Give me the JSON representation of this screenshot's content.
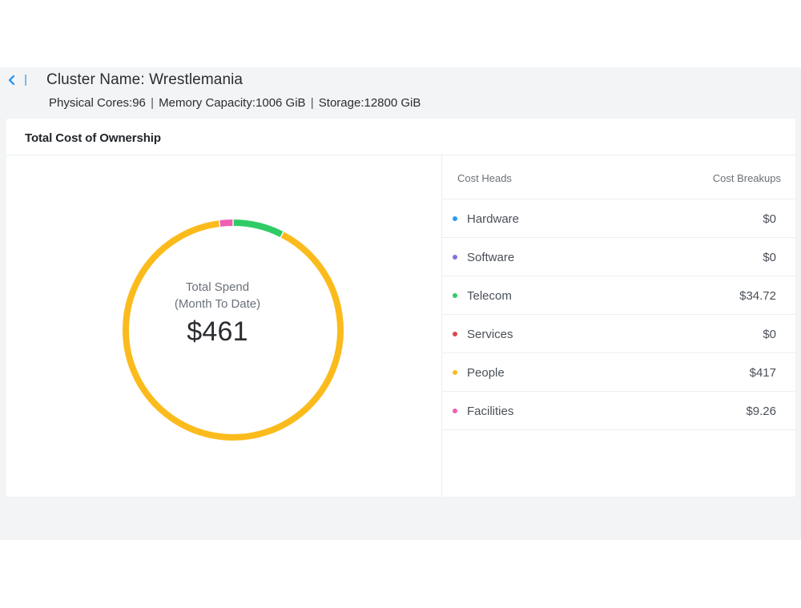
{
  "header": {
    "title": "Cluster Name: Wrestlemania",
    "specs": {
      "cores": "Physical Cores:96",
      "memory": "Memory Capacity:1006 GiB",
      "storage": "Storage:12800 GiB",
      "separator": "|"
    }
  },
  "card": {
    "title": "Total Cost of Ownership",
    "donut": {
      "label_line1": "Total Spend",
      "label_line2": "(Month To Date)",
      "total": "$461"
    },
    "table": {
      "col_left": "Cost Heads",
      "col_right": "Cost Breakups",
      "rows": [
        {
          "name": "Hardware",
          "value": "$0",
          "color": "#2d9cf0"
        },
        {
          "name": "Software",
          "value": "$0",
          "color": "#8a6fdc"
        },
        {
          "name": "Telecom",
          "value": "$34.72",
          "color": "#2fcc66"
        },
        {
          "name": "Services",
          "value": "$0",
          "color": "#e0454e"
        },
        {
          "name": "People",
          "value": "$417",
          "color": "#fbbb1c"
        },
        {
          "name": "Facilities",
          "value": "$9.26",
          "color": "#ef5fb4"
        }
      ]
    }
  },
  "chart_data": {
    "type": "pie",
    "categories": [
      "Hardware",
      "Software",
      "Telecom",
      "Services",
      "People",
      "Facilities"
    ],
    "values": [
      0,
      0,
      34.72,
      0,
      417,
      9.26
    ],
    "colors": [
      "#2d9cf0",
      "#8a6fdc",
      "#2fcc66",
      "#e0454e",
      "#fbbb1c",
      "#ef5fb4"
    ],
    "title": ""
  }
}
